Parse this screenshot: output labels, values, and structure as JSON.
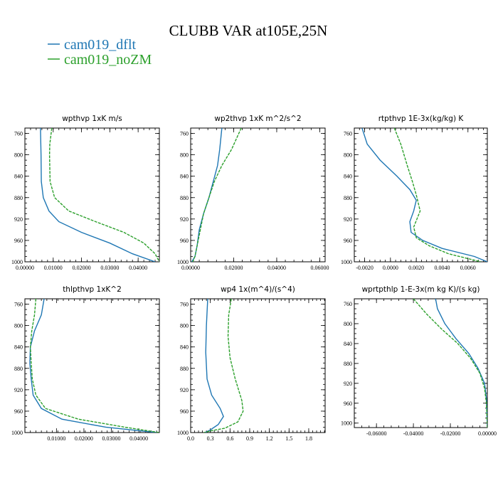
{
  "figure": {
    "title": "CLUBB VAR at105E,25N",
    "legend": [
      {
        "label": "cam019_dflt",
        "color": "#1f77b4",
        "dash": "solid"
      },
      {
        "label": "cam019_noZM",
        "color": "#2ca02c",
        "dash": "dashed"
      }
    ]
  },
  "chart_data": [
    {
      "type": "line",
      "title": "wpthvp  1xK m/s",
      "xlim": [
        0,
        0.0475
      ],
      "ylim": [
        1000,
        750
      ],
      "xticks": [
        "0.00000",
        "0.01000",
        "0.02000",
        "0.03000",
        "0.04000"
      ],
      "xtick_values": [
        0,
        0.01,
        0.02,
        0.03,
        0.04
      ],
      "yticks": [
        "760",
        "800",
        "840",
        "880",
        "920",
        "960",
        "1000"
      ],
      "ytick_values": [
        760,
        800,
        840,
        880,
        920,
        960,
        1000
      ],
      "series": [
        {
          "name": "cam019_dflt",
          "points": [
            [
              0.0055,
              750
            ],
            [
              0.0057,
              800
            ],
            [
              0.0058,
              850
            ],
            [
              0.0065,
              880
            ],
            [
              0.0085,
              905
            ],
            [
              0.012,
              925
            ],
            [
              0.02,
              945
            ],
            [
              0.03,
              965
            ],
            [
              0.038,
              985
            ],
            [
              0.046,
              1000
            ]
          ]
        },
        {
          "name": "cam019_noZM",
          "points": [
            [
              0.0095,
              750
            ],
            [
              0.0088,
              780
            ],
            [
              0.0087,
              800
            ],
            [
              0.0089,
              850
            ],
            [
              0.0105,
              880
            ],
            [
              0.0155,
              905
            ],
            [
              0.025,
              925
            ],
            [
              0.035,
              945
            ],
            [
              0.042,
              965
            ],
            [
              0.046,
              985
            ],
            [
              0.0475,
              1000
            ]
          ]
        }
      ]
    },
    {
      "type": "line",
      "title": "wp2thvp  1xK m^2/s^2",
      "xlim": [
        0,
        0.0625
      ],
      "ylim": [
        1000,
        750
      ],
      "xticks": [
        "0.00000",
        "0.02000",
        "0.04000",
        "0.06000"
      ],
      "xtick_values": [
        0,
        0.02,
        0.04,
        0.06
      ],
      "yticks": [
        "760",
        "800",
        "840",
        "880",
        "920",
        "960",
        "1000"
      ],
      "ytick_values": [
        760,
        800,
        840,
        880,
        920,
        960,
        1000
      ],
      "series": [
        {
          "name": "cam019_dflt",
          "points": [
            [
              0.0145,
              750
            ],
            [
              0.0135,
              790
            ],
            [
              0.0125,
              820
            ],
            [
              0.0105,
              850
            ],
            [
              0.0085,
              880
            ],
            [
              0.006,
              910
            ],
            [
              0.004,
              940
            ],
            [
              0.003,
              970
            ],
            [
              0.002,
              990
            ],
            [
              0.0005,
              1000
            ]
          ]
        },
        {
          "name": "cam019_noZM",
          "points": [
            [
              0.0235,
              750
            ],
            [
              0.019,
              790
            ],
            [
              0.0145,
              820
            ],
            [
              0.011,
              850
            ],
            [
              0.0085,
              880
            ],
            [
              0.006,
              910
            ],
            [
              0.0045,
              940
            ],
            [
              0.003,
              970
            ],
            [
              0.002,
              990
            ],
            [
              0.001,
              1000
            ]
          ]
        }
      ]
    },
    {
      "type": "line",
      "title": "rtpthvp  1E-3x(kg/kg) K",
      "xlim": [
        -0.0028,
        0.0075
      ],
      "ylim": [
        1000,
        750
      ],
      "xticks": [
        "-0.0020",
        "0.0000",
        "0.0020",
        "0.0040",
        "0.0060"
      ],
      "xtick_values": [
        -0.002,
        0,
        0.002,
        0.004,
        0.006
      ],
      "yticks": [
        "760",
        "800",
        "840",
        "880",
        "920",
        "960",
        "1000"
      ],
      "ytick_values": [
        760,
        800,
        840,
        880,
        920,
        960,
        1000
      ],
      "series": [
        {
          "name": "cam019_dflt",
          "points": [
            [
              -0.0022,
              750
            ],
            [
              -0.0018,
              780
            ],
            [
              -0.0008,
              810
            ],
            [
              0.0005,
              840
            ],
            [
              0.0015,
              865
            ],
            [
              0.002,
              885
            ],
            [
              0.0018,
              905
            ],
            [
              0.0015,
              925
            ],
            [
              0.0016,
              945
            ],
            [
              0.0025,
              960
            ],
            [
              0.004,
              975
            ],
            [
              0.0065,
              990
            ],
            [
              0.0075,
              1000
            ]
          ]
        },
        {
          "name": "cam019_noZM",
          "points": [
            [
              0.0003,
              750
            ],
            [
              0.0008,
              780
            ],
            [
              0.0013,
              820
            ],
            [
              0.0017,
              850
            ],
            [
              0.002,
              875
            ],
            [
              0.0023,
              905
            ],
            [
              0.0018,
              935
            ],
            [
              0.002,
              955
            ],
            [
              0.003,
              970
            ],
            [
              0.0045,
              985
            ],
            [
              0.007,
              1000
            ]
          ]
        }
      ]
    },
    {
      "type": "line",
      "title": "thlpthvp  1xK^2",
      "xlim": [
        -0.0015,
        0.0475
      ],
      "ylim": [
        1000,
        750
      ],
      "xticks": [
        "0.01000",
        "0.02000",
        "0.03000",
        "0.04000"
      ],
      "xtick_values": [
        0.01,
        0.02,
        0.03,
        0.04
      ],
      "yticks": [
        "760",
        "800",
        "840",
        "880",
        "920",
        "960",
        "1000"
      ],
      "ytick_values": [
        760,
        800,
        840,
        880,
        920,
        960,
        1000
      ],
      "series": [
        {
          "name": "cam019_dflt",
          "points": [
            [
              0.0055,
              750
            ],
            [
              0.0045,
              780
            ],
            [
              0.002,
              810
            ],
            [
              0.0005,
              840
            ],
            [
              0.0003,
              870
            ],
            [
              0.0008,
              900
            ],
            [
              0.0015,
              930
            ],
            [
              0.0045,
              955
            ],
            [
              0.012,
              975
            ],
            [
              0.028,
              990
            ],
            [
              0.0465,
              1000
            ]
          ]
        },
        {
          "name": "cam019_noZM",
          "points": [
            [
              0.0025,
              750
            ],
            [
              0.002,
              780
            ],
            [
              0.001,
              810
            ],
            [
              0.0005,
              840
            ],
            [
              0.0008,
              870
            ],
            [
              0.0012,
              900
            ],
            [
              0.0025,
              930
            ],
            [
              0.006,
              955
            ],
            [
              0.018,
              975
            ],
            [
              0.035,
              990
            ],
            [
              0.0475,
              1000
            ]
          ]
        }
      ]
    },
    {
      "type": "line",
      "title": "wp4  1x(m^4)/(s^4)",
      "xlim": [
        0,
        2.05
      ],
      "ylim": [
        1000,
        750
      ],
      "xticks": [
        "0.0",
        "0.3",
        "0.6",
        "0.9",
        "1.2",
        "1.5",
        "1.8"
      ],
      "xtick_values": [
        0,
        0.3,
        0.6,
        0.9,
        1.2,
        1.5,
        1.8
      ],
      "yticks": [
        "760",
        "800",
        "840",
        "880",
        "920",
        "960",
        "1000"
      ],
      "ytick_values": [
        760,
        800,
        840,
        880,
        920,
        960,
        1000
      ],
      "series": [
        {
          "name": "cam019_dflt",
          "points": [
            [
              0.26,
              750
            ],
            [
              0.24,
              800
            ],
            [
              0.23,
              850
            ],
            [
              0.25,
              900
            ],
            [
              0.32,
              930
            ],
            [
              0.45,
              955
            ],
            [
              0.5,
              970
            ],
            [
              0.42,
              985
            ],
            [
              0.3,
              995
            ],
            [
              0.22,
              1000
            ]
          ]
        },
        {
          "name": "cam019_noZM",
          "points": [
            [
              0.62,
              750
            ],
            [
              0.58,
              780
            ],
            [
              0.57,
              820
            ],
            [
              0.6,
              860
            ],
            [
              0.68,
              900
            ],
            [
              0.78,
              940
            ],
            [
              0.8,
              960
            ],
            [
              0.72,
              980
            ],
            [
              0.52,
              992
            ],
            [
              0.3,
              997
            ],
            [
              0.2,
              1000
            ]
          ]
        }
      ]
    },
    {
      "type": "line",
      "title": "wprtpthlp  1-E-3x(m kg K)/(s kg)",
      "xlim": [
        -0.072,
        0.0
      ],
      "ylim": [
        1009,
        750
      ],
      "xticks": [
        "-0.06000",
        "-0.04000",
        "-0.02000",
        "0.00000"
      ],
      "xtick_values": [
        -0.06,
        -0.04,
        -0.02,
        0.0
      ],
      "yticks": [
        "760",
        "800",
        "840",
        "880",
        "920",
        "960",
        "1000"
      ],
      "ytick_values": [
        760,
        800,
        840,
        880,
        920,
        960,
        1000
      ],
      "series": [
        {
          "name": "cam019_dflt",
          "points": [
            [
              -0.028,
              750
            ],
            [
              -0.027,
              770
            ],
            [
              -0.023,
              800
            ],
            [
              -0.017,
              830
            ],
            [
              -0.01,
              860
            ],
            [
              -0.005,
              890
            ],
            [
              -0.0015,
              920
            ],
            [
              -0.0005,
              950
            ],
            [
              0,
              1009
            ]
          ]
        },
        {
          "name": "cam019_noZM",
          "points": [
            [
              -0.04,
              750
            ],
            [
              -0.033,
              780
            ],
            [
              -0.025,
              810
            ],
            [
              -0.016,
              840
            ],
            [
              -0.009,
              870
            ],
            [
              -0.004,
              900
            ],
            [
              -0.0015,
              930
            ],
            [
              -0.0005,
              960
            ],
            [
              0,
              1009
            ]
          ]
        }
      ]
    }
  ]
}
